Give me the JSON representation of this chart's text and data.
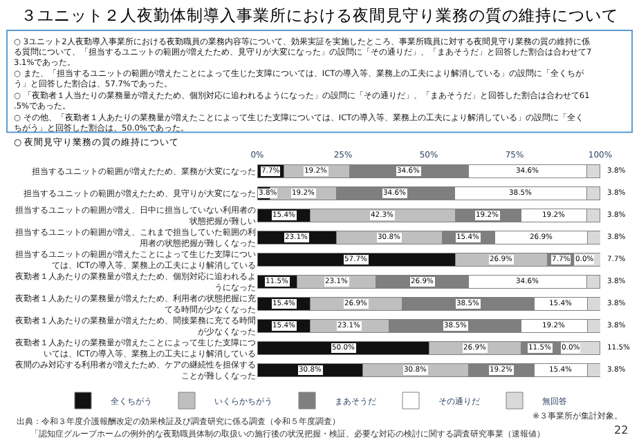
{
  "chart_data": {
    "type": "bar",
    "orientation": "horizontal",
    "stacked": true,
    "title": "３ユニット２人夜勤体制導入事業所における夜間見守り業務の質の維持について",
    "subtitle": "○ 夜間見守り業務の質の維持について",
    "categories": [
      "担当するユニットの範囲が増えたため、業務が大変になった",
      "担当するユニットの範囲が増えたため、見守りが大変になった",
      "担当するユニットの範囲が増え、日中に担当していない利用者の状態把握が難しい",
      "担当するユニットの範囲が増え、これまで担当していた範囲の利用者の状態把握が難しくなった",
      "担当するユニットの範囲が増えたことによって生じた支障については、ICTの導入等、業務上の工夫により解消している",
      "夜勤者１人あたりの業務量が増えたため、個別対応に追われるようになった",
      "夜勤者１人あたりの業務量が増えたため、利用者の状態把握に充てる時間が少なくなった",
      "夜勤者１人あたりの業務量が増えたため、間接業務に充てる時間が少なくなった",
      "夜勤者１人あたりの業務量が増えたことによって生じた支障については、ICTの導入等、業務上の工夫により解消している",
      "夜間のみ対応する利用者が増えたため、ケアの継続性を担保することが難しくなった"
    ],
    "series": [
      {
        "name": "全くちがう",
        "color": "#111111",
        "values": [
          7.7,
          3.8,
          15.4,
          23.1,
          57.7,
          11.5,
          15.4,
          15.4,
          50.0,
          30.8
        ],
        "value_labels": [
          "7.7%",
          "3.8%",
          "15.4%",
          "23.1%",
          "57.7%",
          "11.5%",
          "15.4%",
          "15.4%",
          "50.0%",
          "30.8%"
        ]
      },
      {
        "name": "いくらかちがう",
        "color": "#bfbfbf",
        "values": [
          19.2,
          19.2,
          42.3,
          30.8,
          26.9,
          23.1,
          26.9,
          23.1,
          26.9,
          30.8
        ],
        "value_labels": [
          "19.2%",
          "19.2%",
          "42.3%",
          "30.8%",
          "26.9%",
          "23.1%",
          "26.9%",
          "23.1%",
          "26.9%",
          "30.8%"
        ]
      },
      {
        "name": "まあそうだ",
        "color": "#7f7f7f",
        "values": [
          34.6,
          34.6,
          19.2,
          15.4,
          7.7,
          26.9,
          38.5,
          38.5,
          11.5,
          19.2
        ],
        "value_labels": [
          "34.6%",
          "34.6%",
          "19.2%",
          "15.4%",
          "7.7%",
          "26.9%",
          "38.5%",
          "38.5%",
          "11.5%",
          "19.2%"
        ]
      },
      {
        "name": "その通りだ",
        "color": "#ffffff",
        "values": [
          34.6,
          38.5,
          19.2,
          26.9,
          0.0,
          34.6,
          15.4,
          19.2,
          0.0,
          15.4
        ],
        "value_labels": [
          "34.6%",
          "38.5%",
          "19.2%",
          "26.9%",
          "0.0%",
          "34.6%",
          "15.4%",
          "19.2%",
          "0.0%",
          "15.4%"
        ]
      },
      {
        "name": "無回答",
        "color": "#d9d9d9",
        "values": [
          3.8,
          3.8,
          3.8,
          3.8,
          7.7,
          3.8,
          3.8,
          3.8,
          11.5,
          3.8
        ],
        "value_labels": [
          "3.8%",
          "3.8%",
          "3.8%",
          "3.8%",
          "7.7%",
          "3.8%",
          "3.8%",
          "3.8%",
          "11.5%",
          "3.8%"
        ]
      }
    ],
    "xlim": [
      0,
      100
    ],
    "xticks": [
      {
        "value": 0,
        "label": "0%"
      },
      {
        "value": 25,
        "label": "25%"
      },
      {
        "value": 50,
        "label": "50%"
      },
      {
        "value": 75,
        "label": "75%"
      },
      {
        "value": 100,
        "label": "100%"
      }
    ],
    "legend": "bottom",
    "annotations": [
      "○ 3ユニット2人夜勤導入事業所における夜勤職員の業務内容等について、効果実証を実施したところ、事業所職員に対する夜間見守り業務の質の維持に係る質問について、「担当するユニットの範囲が増えたため、見守りが大変になった」の設問に「その通りだ」、「まあそうだ」と回答した割合は合わせて73.1%であった。",
      "○ また、「担当するユニットの範囲が増えたことによって生じた支障については、ICTの導入等、業務上の工夫により解消している」の設問に「全くちがう」と回答した割合は、57.7%であった。",
      "○ 「夜勤者１人当たりの業務量が増えたため、個別対応に追われるようになった」の設問に「その通りだ」、「まあそうだ」と回答した割合は合わせて61.5%であった。",
      "○ その他、「夜勤者１人あたりの業務量が増えたことによって生じた支障については、ICTの導入等、業務上の工夫により解消している」の設問に「全くちがう」と回答した割合は、50.0%であった。",
      "※３事業所が集計対象。",
      "出典：令和３年度介護報酬改定の効果検証及び調査研究に係る調査（令和５年度調査）",
      "「認知症グループホームの例外的な夜勤職員体制の取扱いの施行後の状況把握・検証、必要な対応の検討に関する調査研究事業（速報値）",
      "22"
    ]
  }
}
